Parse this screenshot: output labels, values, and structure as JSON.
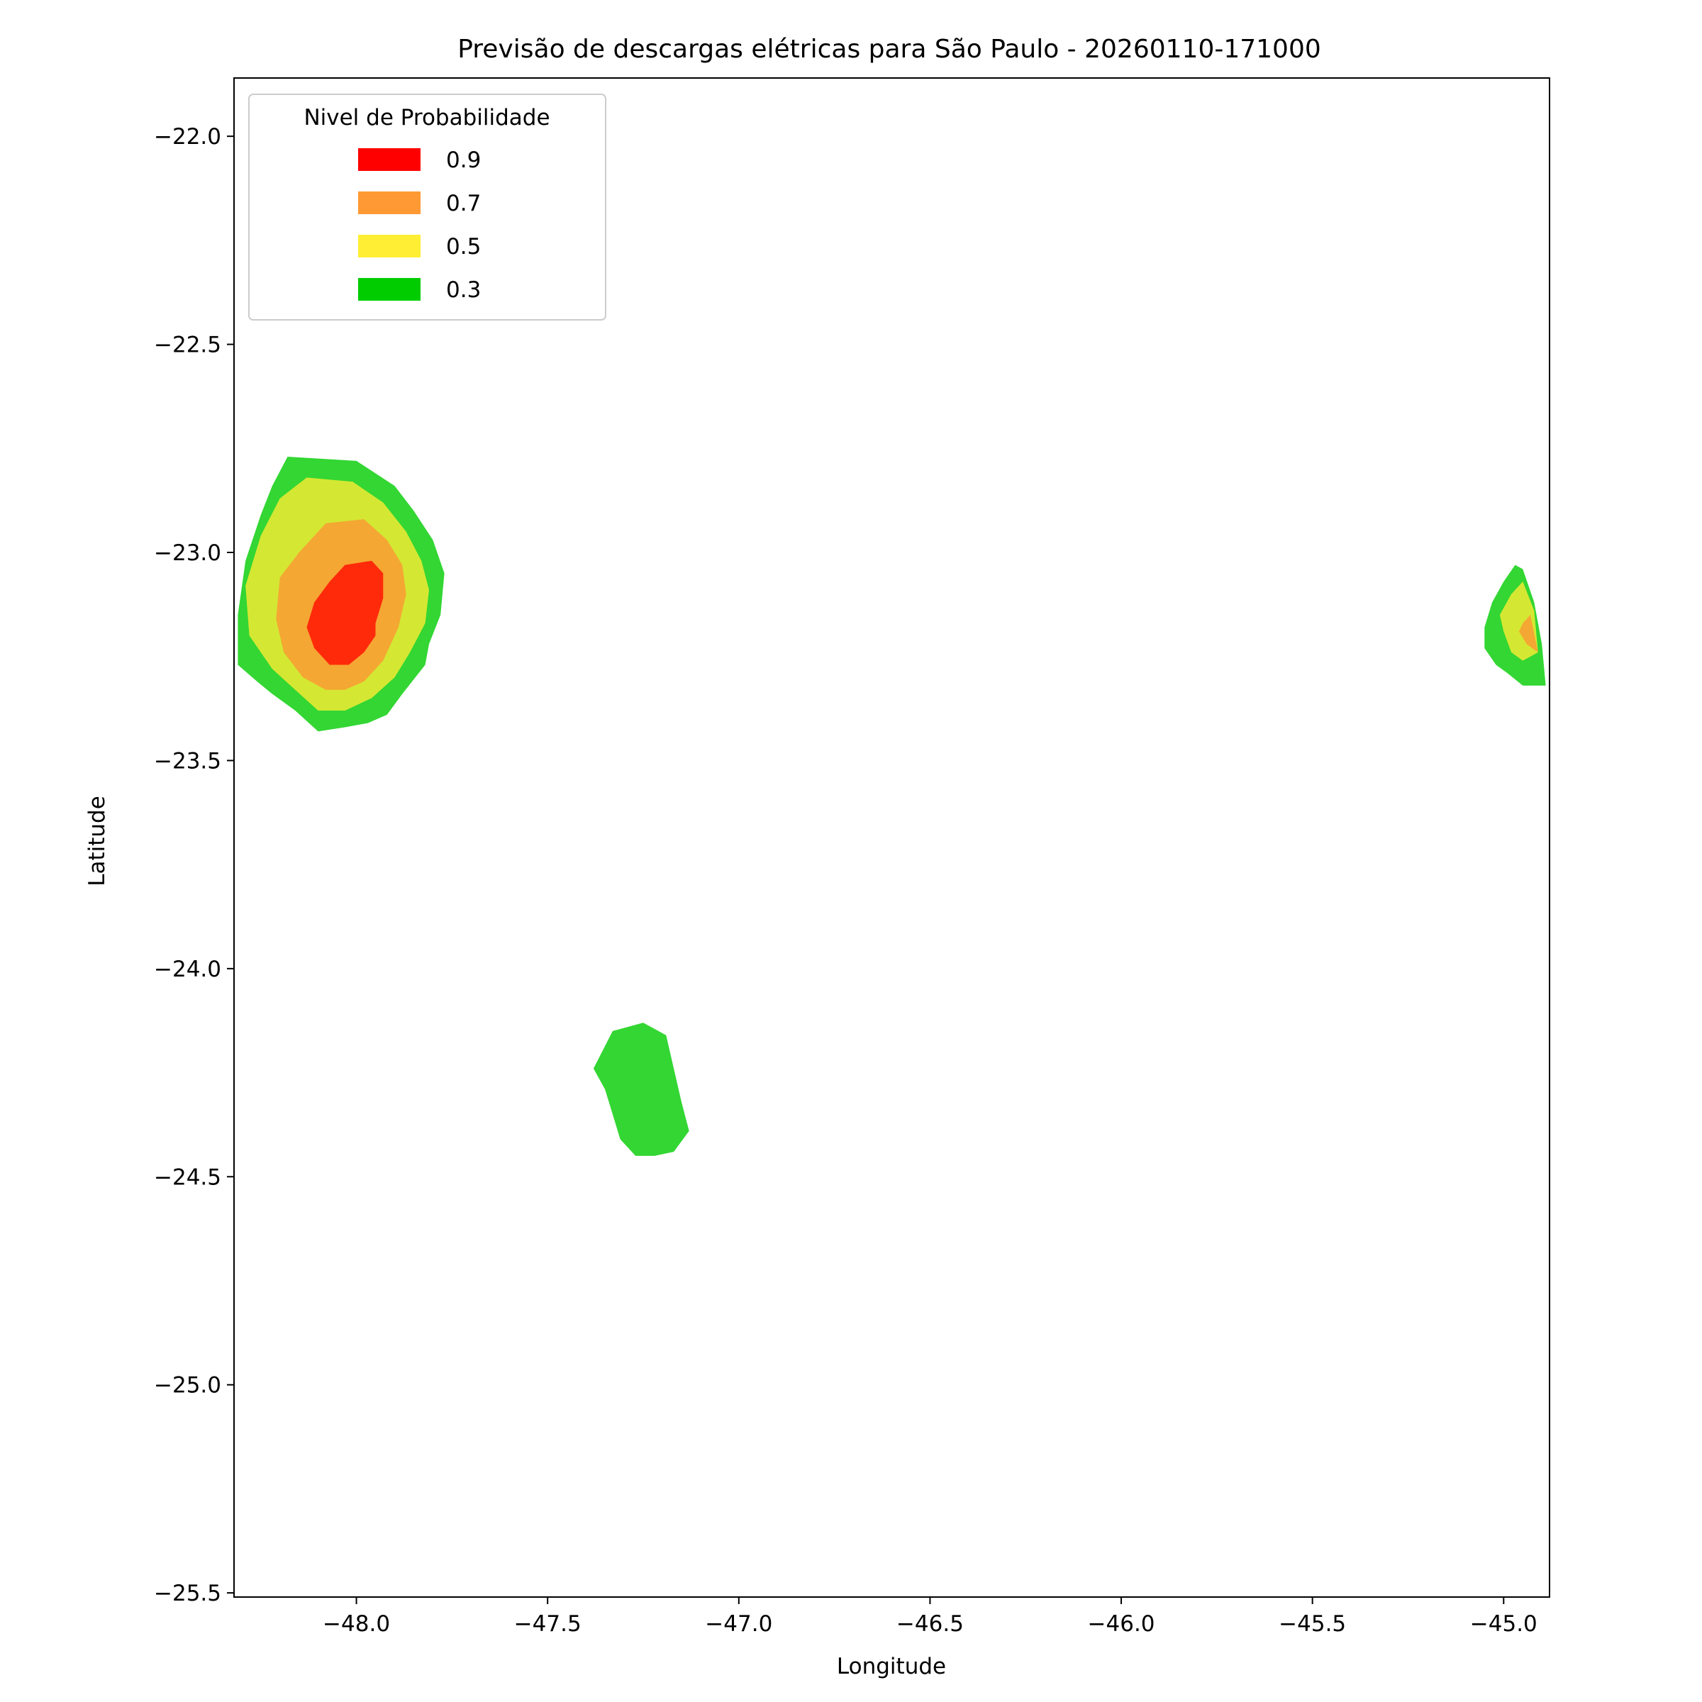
{
  "chart_data": {
    "type": "contour",
    "title": "Previsão de descargas elétricas para São Paulo - 20260110-171000",
    "xlabel": "Longitude",
    "ylabel": "Latitude",
    "xlim": [
      -48.32,
      -44.88
    ],
    "ylim": [
      -25.51,
      -21.86
    ],
    "xticks": [
      -48.0,
      -47.5,
      -47.0,
      -46.5,
      -46.0,
      -45.5,
      -45.0
    ],
    "xtick_labels": [
      "−48.0",
      "−47.5",
      "−47.0",
      "−46.5",
      "−46.0",
      "−45.5",
      "−45.0"
    ],
    "yticks": [
      -22.0,
      -22.5,
      -23.0,
      -23.5,
      -24.0,
      -24.5,
      -25.0,
      -25.5
    ],
    "ytick_labels": [
      "−22.0",
      "−22.5",
      "−23.0",
      "−23.5",
      "−24.0",
      "−24.5",
      "−25.0",
      "−25.5"
    ],
    "grid": false,
    "legend": {
      "title": "Nivel de Probabilidade",
      "placement": "upper-left",
      "entries": [
        {
          "label": "0.9",
          "color": "#ff0000"
        },
        {
          "label": "0.7",
          "color": "#ff9933"
        },
        {
          "label": "0.5",
          "color": "#ffee33"
        },
        {
          "label": "0.3",
          "color": "#00cc00"
        }
      ]
    },
    "level_colors": {
      "0.3": "#33d633",
      "0.5": "#d4e833",
      "0.7": "#f4a733",
      "0.9": "#ff2a0a"
    },
    "regions": [
      {
        "level": "0.3",
        "points": [
          [
            -48.18,
            -22.77
          ],
          [
            -48.0,
            -22.78
          ],
          [
            -47.9,
            -22.84
          ],
          [
            -47.85,
            -22.9
          ],
          [
            -47.8,
            -22.97
          ],
          [
            -47.77,
            -23.05
          ],
          [
            -47.78,
            -23.15
          ],
          [
            -47.81,
            -23.22
          ],
          [
            -47.82,
            -23.27
          ],
          [
            -47.88,
            -23.34
          ],
          [
            -47.92,
            -23.39
          ],
          [
            -47.97,
            -23.41
          ],
          [
            -48.03,
            -23.42
          ],
          [
            -48.1,
            -23.43
          ],
          [
            -48.16,
            -23.38
          ],
          [
            -48.22,
            -23.34
          ],
          [
            -48.26,
            -23.31
          ],
          [
            -48.31,
            -23.27
          ],
          [
            -48.31,
            -23.15
          ],
          [
            -48.29,
            -23.02
          ],
          [
            -48.25,
            -22.91
          ],
          [
            -48.22,
            -22.84
          ]
        ]
      },
      {
        "level": "0.5",
        "points": [
          [
            -48.13,
            -22.82
          ],
          [
            -48.01,
            -22.83
          ],
          [
            -47.93,
            -22.88
          ],
          [
            -47.87,
            -22.95
          ],
          [
            -47.83,
            -23.02
          ],
          [
            -47.81,
            -23.09
          ],
          [
            -47.82,
            -23.17
          ],
          [
            -47.86,
            -23.24
          ],
          [
            -47.9,
            -23.3
          ],
          [
            -47.96,
            -23.35
          ],
          [
            -48.03,
            -23.38
          ],
          [
            -48.1,
            -23.38
          ],
          [
            -48.16,
            -23.33
          ],
          [
            -48.22,
            -23.28
          ],
          [
            -48.28,
            -23.2
          ],
          [
            -48.29,
            -23.08
          ],
          [
            -48.25,
            -22.96
          ],
          [
            -48.2,
            -22.87
          ]
        ]
      },
      {
        "level": "0.7",
        "points": [
          [
            -48.08,
            -22.93
          ],
          [
            -47.98,
            -22.92
          ],
          [
            -47.92,
            -22.97
          ],
          [
            -47.88,
            -23.03
          ],
          [
            -47.87,
            -23.1
          ],
          [
            -47.89,
            -23.18
          ],
          [
            -47.93,
            -23.26
          ],
          [
            -47.98,
            -23.31
          ],
          [
            -48.03,
            -23.33
          ],
          [
            -48.08,
            -23.33
          ],
          [
            -48.14,
            -23.3
          ],
          [
            -48.19,
            -23.24
          ],
          [
            -48.21,
            -23.16
          ],
          [
            -48.2,
            -23.06
          ],
          [
            -48.15,
            -23.0
          ],
          [
            -48.11,
            -22.96
          ]
        ]
      },
      {
        "level": "0.9",
        "points": [
          [
            -48.03,
            -23.03
          ],
          [
            -47.96,
            -23.02
          ],
          [
            -47.93,
            -23.05
          ],
          [
            -47.93,
            -23.11
          ],
          [
            -47.95,
            -23.17
          ],
          [
            -47.95,
            -23.2
          ],
          [
            -47.98,
            -23.24
          ],
          [
            -48.02,
            -23.27
          ],
          [
            -48.07,
            -23.27
          ],
          [
            -48.11,
            -23.23
          ],
          [
            -48.13,
            -23.18
          ],
          [
            -48.11,
            -23.12
          ],
          [
            -48.07,
            -23.07
          ]
        ]
      },
      {
        "level": "0.3",
        "points": [
          [
            -47.33,
            -24.15
          ],
          [
            -47.25,
            -24.13
          ],
          [
            -47.19,
            -24.16
          ],
          [
            -47.17,
            -24.24
          ],
          [
            -47.15,
            -24.32
          ],
          [
            -47.13,
            -24.39
          ],
          [
            -47.17,
            -24.44
          ],
          [
            -47.22,
            -24.45
          ],
          [
            -47.27,
            -24.45
          ],
          [
            -47.31,
            -24.41
          ],
          [
            -47.33,
            -24.35
          ],
          [
            -47.35,
            -24.29
          ],
          [
            -47.38,
            -24.24
          ]
        ]
      },
      {
        "level": "0.3",
        "points": [
          [
            -44.97,
            -23.03
          ],
          [
            -44.95,
            -23.04
          ],
          [
            -44.92,
            -23.12
          ],
          [
            -44.9,
            -23.22
          ],
          [
            -44.89,
            -23.32
          ],
          [
            -44.95,
            -23.32
          ],
          [
            -44.99,
            -23.29
          ],
          [
            -45.02,
            -23.27
          ],
          [
            -45.05,
            -23.23
          ],
          [
            -45.05,
            -23.18
          ],
          [
            -45.03,
            -23.12
          ],
          [
            -45.0,
            -23.07
          ]
        ]
      },
      {
        "level": "0.5",
        "points": [
          [
            -44.95,
            -23.07
          ],
          [
            -44.92,
            -23.14
          ],
          [
            -44.91,
            -23.24
          ],
          [
            -44.95,
            -23.26
          ],
          [
            -44.98,
            -23.24
          ],
          [
            -45.0,
            -23.19
          ],
          [
            -45.01,
            -23.15
          ],
          [
            -44.98,
            -23.1
          ]
        ]
      },
      {
        "level": "0.7",
        "points": [
          [
            -44.93,
            -23.15
          ],
          [
            -44.91,
            -23.24
          ],
          [
            -44.94,
            -23.22
          ],
          [
            -44.96,
            -23.19
          ],
          [
            -44.95,
            -23.17
          ]
        ]
      }
    ]
  }
}
